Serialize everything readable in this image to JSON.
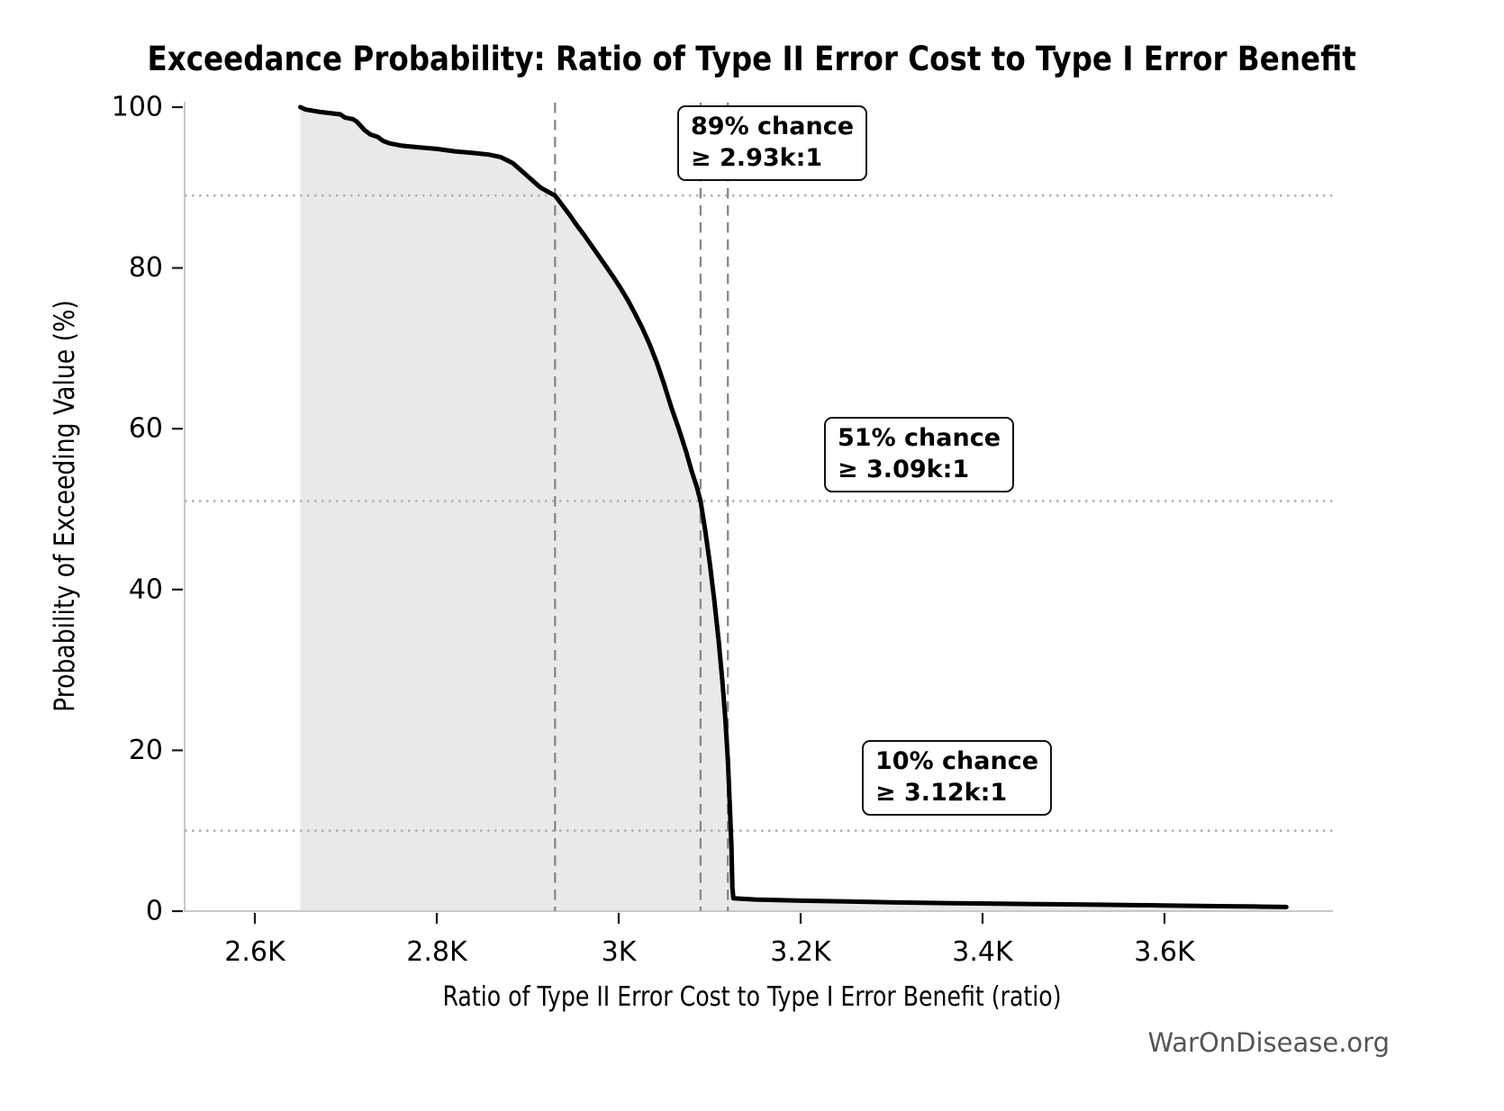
{
  "chart_data": {
    "type": "area",
    "title": "Exceedance Probability: Ratio of Type II Error Cost to Type I Error Benefit",
    "xlabel": "Ratio of Type II Error Cost to Type I Error Benefit (ratio)",
    "ylabel": "Probability of Exceeding Value (%)",
    "watermark": "WarOnDisease.org",
    "xlim_k": [
      2.523,
      3.788
    ],
    "ylim": [
      0,
      100
    ],
    "grid": "off",
    "legend": "none",
    "x_ticks": [
      {
        "value": 2.6,
        "label": "2.6K"
      },
      {
        "value": 2.8,
        "label": "2.8K"
      },
      {
        "value": 3.0,
        "label": "3K"
      },
      {
        "value": 3.2,
        "label": "3.2K"
      },
      {
        "value": 3.4,
        "label": "3.4K"
      },
      {
        "value": 3.6,
        "label": "3.6K"
      }
    ],
    "y_ticks": [
      {
        "value": 0,
        "label": "0"
      },
      {
        "value": 20,
        "label": "20"
      },
      {
        "value": 40,
        "label": "40"
      },
      {
        "value": 60,
        "label": "60"
      },
      {
        "value": 80,
        "label": "80"
      },
      {
        "value": 100,
        "label": "100"
      }
    ],
    "h_guides_pct": [
      89,
      51,
      10
    ],
    "v_guides_ratio_k": [
      2.93,
      3.09,
      3.12
    ],
    "annotations": [
      {
        "line1": "89% chance",
        "line2": "≥ 2.93k:1",
        "at_ratio_k": 2.93,
        "at_pct": 89
      },
      {
        "line1": "51% chance",
        "line2": "≥ 3.09k:1",
        "at_ratio_k": 3.09,
        "at_pct": 51
      },
      {
        "line1": "10% chance",
        "line2": "≥ 3.12k:1",
        "at_ratio_k": 3.12,
        "at_pct": 10
      }
    ],
    "colors": {
      "curve": "#000000",
      "fill": "#e9e9e9",
      "dashed_guide": "#888888",
      "dotted_guide": "#b3b3b3",
      "spine": "#c9c9c9",
      "tick": "#1a1a1a",
      "watermark": "#555555",
      "annotation_border": "#111111",
      "annotation_bg": "#ffffff"
    },
    "series": [
      {
        "name": "Exceedance probability curve",
        "points_ratio_k_pct": [
          [
            2.65,
            100.0
          ],
          [
            2.656,
            99.7
          ],
          [
            2.672,
            99.4
          ],
          [
            2.694,
            99.1
          ],
          [
            2.699,
            98.7
          ],
          [
            2.708,
            98.5
          ],
          [
            2.712,
            98.2
          ],
          [
            2.716,
            97.7
          ],
          [
            2.721,
            97.1
          ],
          [
            2.727,
            96.6
          ],
          [
            2.735,
            96.3
          ],
          [
            2.741,
            95.8
          ],
          [
            2.748,
            95.5
          ],
          [
            2.762,
            95.2
          ],
          [
            2.78,
            95.0
          ],
          [
            2.8,
            94.8
          ],
          [
            2.82,
            94.5
          ],
          [
            2.84,
            94.3
          ],
          [
            2.857,
            94.1
          ],
          [
            2.87,
            93.8
          ],
          [
            2.877,
            93.4
          ],
          [
            2.884,
            93.0
          ],
          [
            2.891,
            92.3
          ],
          [
            2.898,
            91.6
          ],
          [
            2.906,
            90.8
          ],
          [
            2.914,
            90.0
          ],
          [
            2.922,
            89.5
          ],
          [
            2.93,
            89.0
          ],
          [
            2.938,
            87.8
          ],
          [
            2.946,
            86.6
          ],
          [
            2.954,
            85.3
          ],
          [
            2.962,
            84.1
          ],
          [
            2.97,
            82.8
          ],
          [
            2.978,
            81.5
          ],
          [
            2.986,
            80.2
          ],
          [
            2.994,
            78.9
          ],
          [
            3.002,
            77.5
          ],
          [
            3.01,
            76.0
          ],
          [
            3.018,
            74.3
          ],
          [
            3.026,
            72.5
          ],
          [
            3.034,
            70.5
          ],
          [
            3.042,
            68.2
          ],
          [
            3.05,
            65.5
          ],
          [
            3.058,
            62.6
          ],
          [
            3.066,
            60.0
          ],
          [
            3.074,
            57.2
          ],
          [
            3.08,
            54.8
          ],
          [
            3.086,
            52.7
          ],
          [
            3.09,
            51.0
          ],
          [
            3.095,
            47.4
          ],
          [
            3.1,
            43.4
          ],
          [
            3.105,
            38.8
          ],
          [
            3.11,
            33.5
          ],
          [
            3.114,
            28.6
          ],
          [
            3.117,
            24.2
          ],
          [
            3.12,
            18.8
          ],
          [
            3.122,
            13.6
          ],
          [
            3.124,
            8.0
          ],
          [
            3.125,
            3.0
          ],
          [
            3.126,
            1.6
          ],
          [
            3.15,
            1.45
          ],
          [
            3.2,
            1.3
          ],
          [
            3.25,
            1.2
          ],
          [
            3.3,
            1.1
          ],
          [
            3.36,
            1.0
          ],
          [
            3.42,
            0.92
          ],
          [
            3.48,
            0.85
          ],
          [
            3.54,
            0.78
          ],
          [
            3.6,
            0.7
          ],
          [
            3.66,
            0.62
          ],
          [
            3.7,
            0.57
          ],
          [
            3.734,
            0.52
          ]
        ]
      }
    ]
  }
}
